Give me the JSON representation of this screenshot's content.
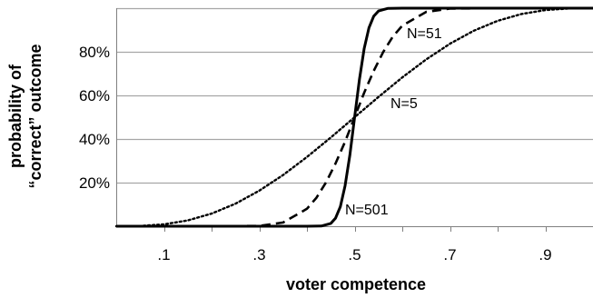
{
  "chart_data": {
    "type": "line",
    "title": "",
    "xlabel": "voter competence",
    "ylabel_lines": [
      "probability of",
      "“correct” outcome"
    ],
    "xlim": [
      0,
      1
    ],
    "ylim": [
      0,
      1
    ],
    "x_ticks": [
      {
        "value": 0.1,
        "label": ".1"
      },
      {
        "value": 0.3,
        "label": ".3"
      },
      {
        "value": 0.5,
        "label": ".5"
      },
      {
        "value": 0.7,
        "label": ".7"
      },
      {
        "value": 0.9,
        "label": ".9"
      }
    ],
    "y_ticks": [
      {
        "value": 0.2,
        "label": "20%"
      },
      {
        "value": 0.4,
        "label": "40%"
      },
      {
        "value": 0.6,
        "label": "60%"
      },
      {
        "value": 0.8,
        "label": "80%"
      }
    ],
    "grid": "horizontal",
    "legend": "none",
    "series": [
      {
        "name": "N=501",
        "n_voters": 501,
        "line_style": "solid",
        "color": "#000000",
        "x": [
          0,
          0.3,
          0.4,
          0.43,
          0.45,
          0.46,
          0.47,
          0.48,
          0.49,
          0.5,
          0.51,
          0.52,
          0.53,
          0.54,
          0.55,
          0.57,
          0.6,
          0.7,
          1.0
        ],
        "y": [
          0,
          0,
          3e-08,
          0.0009,
          0.013,
          0.037,
          0.09,
          0.186,
          0.327,
          0.5,
          0.673,
          0.814,
          0.91,
          0.963,
          0.987,
          0.9991,
          1.0,
          1.0,
          1.0
        ]
      },
      {
        "name": "N=51",
        "n_voters": 51,
        "line_style": "dashed",
        "color": "#000000",
        "x": [
          0,
          0.2,
          0.3,
          0.35,
          0.4,
          0.42,
          0.44,
          0.46,
          0.48,
          0.5,
          0.52,
          0.54,
          0.56,
          0.58,
          0.6,
          0.65,
          0.7,
          0.8,
          1.0
        ],
        "y": [
          0,
          1e-06,
          0.0016,
          0.017,
          0.08,
          0.131,
          0.201,
          0.288,
          0.388,
          0.5,
          0.612,
          0.712,
          0.799,
          0.869,
          0.92,
          0.983,
          0.998,
          0.999999,
          1.0
        ]
      },
      {
        "name": "N=5",
        "n_voters": 5,
        "line_style": "dotted",
        "color": "#000000",
        "x": [
          0,
          0.05,
          0.1,
          0.15,
          0.2,
          0.25,
          0.3,
          0.35,
          0.4,
          0.45,
          0.5,
          0.55,
          0.6,
          0.65,
          0.7,
          0.75,
          0.8,
          0.85,
          0.9,
          0.95,
          1.0
        ],
        "y": [
          0,
          0.0012,
          0.0086,
          0.0266,
          0.0579,
          0.1035,
          0.1631,
          0.2352,
          0.3174,
          0.4069,
          0.5,
          0.5931,
          0.6826,
          0.7648,
          0.8369,
          0.8965,
          0.9421,
          0.9734,
          0.9914,
          0.9988,
          1.0
        ]
      }
    ]
  },
  "colors": {
    "gridline": "#a6a6a6",
    "axis": "#808080",
    "line": "#000000"
  }
}
